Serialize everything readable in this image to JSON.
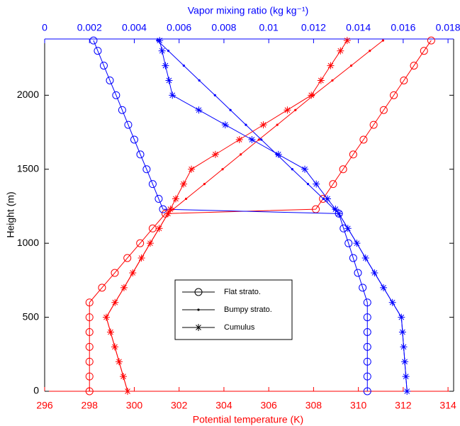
{
  "chart_data": {
    "type": "profile",
    "x_label": "Potential temperature (K)",
    "x2_label": "Vapor mixing ratio (kg kg⁻¹)",
    "y_label": "Height (m)",
    "x_color": "#ff0000",
    "x2_color": "#0000ff",
    "xlim": [
      296,
      314.25
    ],
    "xticks": [
      296,
      298,
      300,
      302,
      304,
      306,
      308,
      310,
      312,
      314
    ],
    "x2lim": [
      0,
      0.01825
    ],
    "x2ticks": [
      0,
      0.002,
      0.004,
      0.006,
      0.008,
      0.01,
      0.012,
      0.014,
      0.016,
      0.018
    ],
    "ylim": [
      0,
      2380
    ],
    "yticks": [
      0,
      500,
      1000,
      1500,
      2000
    ],
    "heights": [
      0,
      100,
      200,
      300,
      400,
      500,
      600,
      700,
      800,
      900,
      1000,
      1100,
      1200,
      1230,
      1300,
      1400,
      1500,
      1600,
      1700,
      1800,
      1900,
      2000,
      2100,
      2200,
      2300,
      2370
    ],
    "series": [
      {
        "name": "Flat strato.",
        "marker": "circle",
        "temperature": [
          298,
          298,
          298,
          298,
          298,
          298,
          298,
          298.56,
          299.13,
          299.69,
          300.26,
          300.82,
          301.39,
          308.1,
          308.42,
          308.87,
          309.32,
          309.77,
          310.23,
          310.68,
          311.13,
          311.58,
          312.03,
          312.48,
          312.93,
          313.25
        ],
        "mixing_ratio": [
          0.0144,
          0.0144,
          0.0144,
          0.0144,
          0.0144,
          0.0144,
          0.0144,
          0.01419,
          0.01398,
          0.01377,
          0.01356,
          0.01334,
          0.01313,
          0.00528,
          0.00509,
          0.00482,
          0.00455,
          0.00427,
          0.004,
          0.00373,
          0.00346,
          0.00319,
          0.00291,
          0.00264,
          0.00237,
          0.00218
        ]
      },
      {
        "name": "Bumpy strato.",
        "marker": "dot",
        "temperature": [
          299.7,
          299.51,
          299.32,
          299.13,
          298.94,
          298.75,
          299.14,
          299.54,
          299.93,
          300.32,
          300.71,
          301.11,
          301.5,
          301.74,
          302.31,
          303.13,
          303.94,
          304.75,
          305.56,
          306.38,
          307.19,
          308,
          308.84,
          309.68,
          310.51,
          311.1
        ],
        "mixing_ratio": [
          0.01617,
          0.01612,
          0.01607,
          0.01602,
          0.01597,
          0.01592,
          0.01552,
          0.01512,
          0.01472,
          0.01432,
          0.01393,
          0.01353,
          0.01313,
          0.01292,
          0.01244,
          0.01175,
          0.01105,
          0.01036,
          0.00967,
          0.00898,
          0.00829,
          0.0076,
          0.0069,
          0.00621,
          0.00552,
          0.00503
        ]
      },
      {
        "name": "Cumulus",
        "marker": "star",
        "temperature": [
          299.7,
          299.51,
          299.32,
          299.13,
          298.94,
          298.75,
          299.14,
          299.54,
          299.93,
          300.32,
          300.71,
          301.11,
          301.5,
          301.61,
          301.85,
          302.2,
          302.55,
          303.62,
          304.69,
          305.76,
          306.83,
          307.9,
          308.33,
          308.76,
          309.2,
          309.5
        ],
        "mixing_ratio": [
          0.01617,
          0.01612,
          0.01607,
          0.01602,
          0.01597,
          0.01592,
          0.01552,
          0.01512,
          0.01472,
          0.01432,
          0.01393,
          0.01353,
          0.01313,
          0.01298,
          0.01262,
          0.01212,
          0.01161,
          0.01043,
          0.00925,
          0.00806,
          0.00688,
          0.0057,
          0.00555,
          0.00539,
          0.00524,
          0.00513
        ]
      }
    ]
  }
}
